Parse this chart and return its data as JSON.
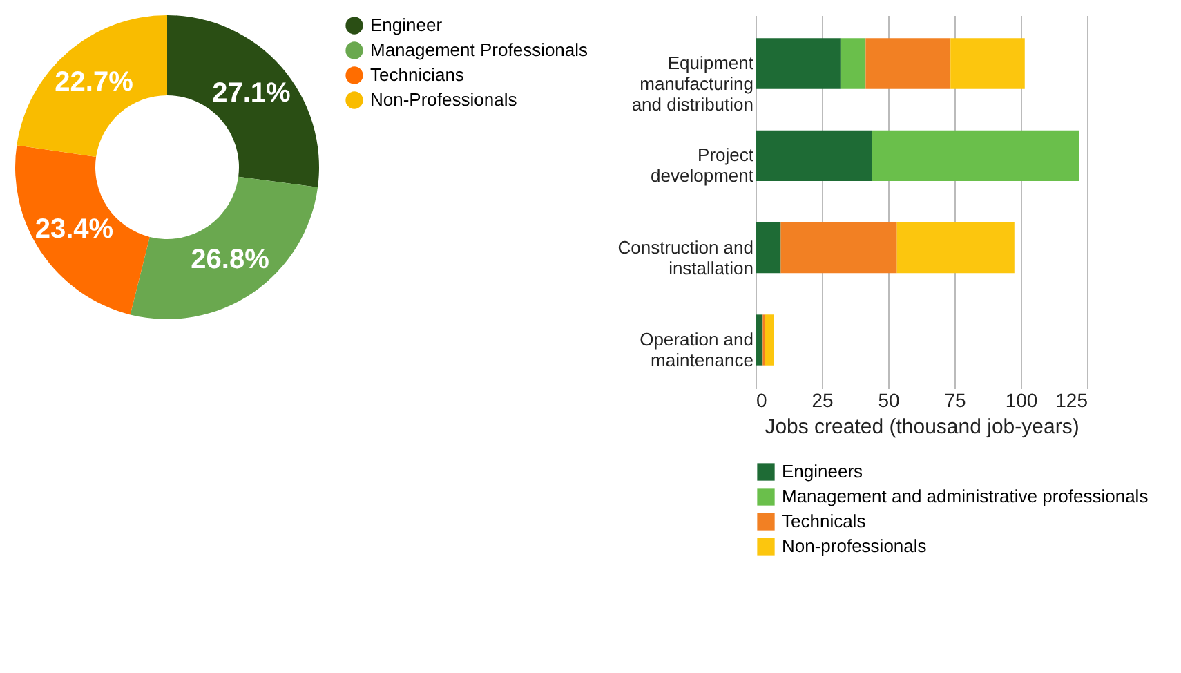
{
  "chart_data": [
    {
      "type": "donut",
      "categories": [
        "Engineer",
        "Management Professionals",
        "Technicians",
        "Non-Professionals"
      ],
      "values": [
        27.1,
        26.8,
        23.4,
        22.7
      ],
      "colors": [
        "#2a4e14",
        "#6aa84f",
        "#ff6d00",
        "#f9bc00"
      ],
      "value_labels": [
        "27.1%",
        "26.8%",
        "23.4%",
        "22.7%"
      ],
      "legend": "right"
    },
    {
      "type": "bar",
      "orientation": "horizontal",
      "stacked": true,
      "categories": [
        "Equipment manufacturing and distribution",
        "Project development",
        "Construction and installation",
        "Operation and maintenance"
      ],
      "series": [
        {
          "name": "Engineers",
          "color": "#1e6b35",
          "values": [
            32,
            44,
            9.5,
            2.7
          ]
        },
        {
          "name": "Management and administrative professionals",
          "color": "#6abf4b",
          "values": [
            9.5,
            78,
            0,
            0
          ]
        },
        {
          "name": "Technicals",
          "color": "#f28023",
          "values": [
            32,
            0,
            43.8,
            0.7
          ]
        },
        {
          "name": "Non-professionals",
          "color": "#fcc60e",
          "values": [
            28,
            0,
            44.3,
            3.4
          ]
        }
      ],
      "xlabel": "Jobs created (thousand job-years)",
      "xlim": [
        0,
        125
      ],
      "xticks": [
        0,
        25,
        50,
        75,
        100,
        125
      ],
      "grid": "x",
      "legend": "bottom"
    }
  ]
}
